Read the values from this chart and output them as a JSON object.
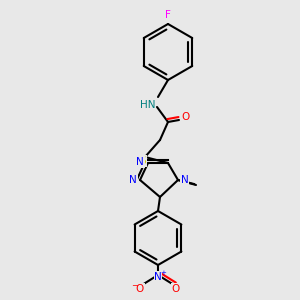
{
  "bg_color": "#e8e8e8",
  "bond_color": "#000000",
  "bond_width": 1.5,
  "atom_colors": {
    "N": "#0000ff",
    "O": "#ff0000",
    "F": "#ff00ff",
    "S": "#cccc00",
    "NH": "#008080",
    "C": "#000000"
  },
  "font_size": 7,
  "label_fontsize": 7
}
